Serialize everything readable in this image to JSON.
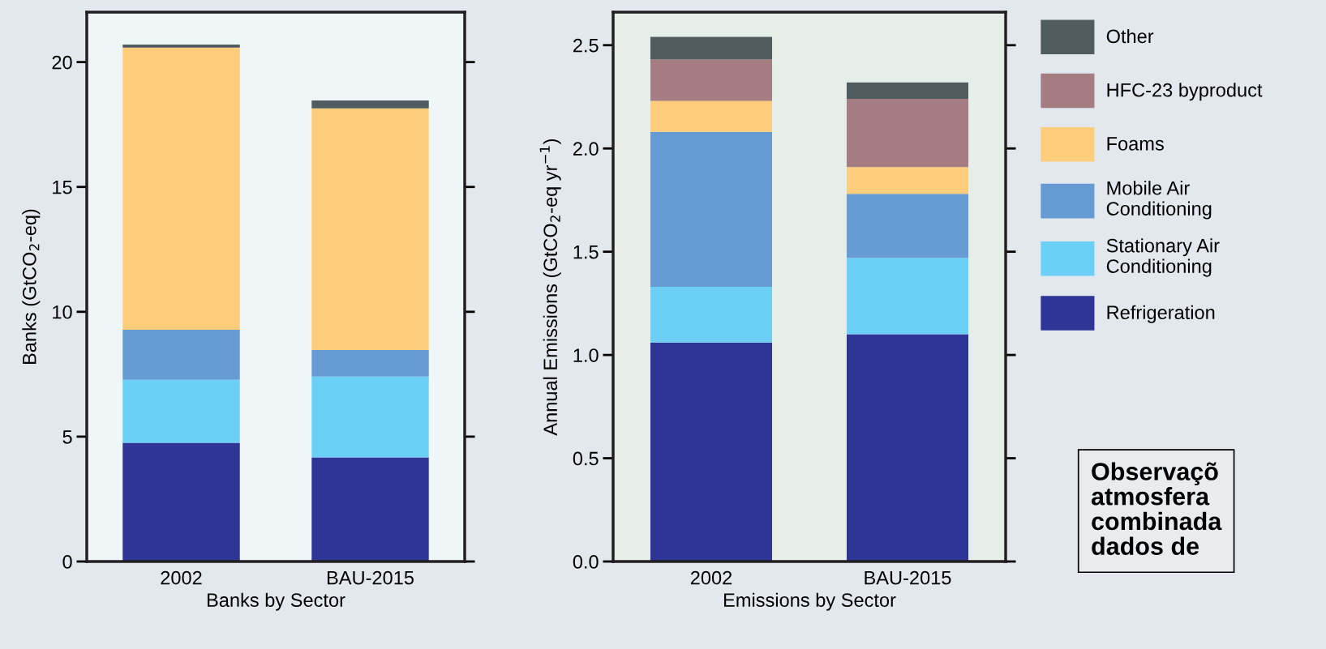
{
  "chart_data": [
    {
      "type": "bar",
      "stacked": true,
      "xlabel": "Banks by Sector",
      "ylabel": "Banks (GtCO$_{2}$-eq)",
      "categories": [
        "2002",
        "BAU-2015"
      ],
      "ylim": [
        0,
        22
      ],
      "yticks": [
        0,
        5,
        10,
        15,
        20
      ],
      "legend": false,
      "grid": false,
      "series": [
        {
          "color": "#2f3596",
          "values": [
            4.75,
            4.17
          ]
        },
        {
          "color": "#6ccff5",
          "values": [
            2.53,
            3.24
          ]
        },
        {
          "color": "#679bd3",
          "values": [
            2.0,
            1.06
          ]
        },
        {
          "color": "#fecd7b",
          "values": [
            11.3,
            9.68
          ]
        },
        {
          "color": "#515c61",
          "values": [
            0.12,
            0.31
          ]
        }
      ]
    },
    {
      "type": "bar",
      "stacked": true,
      "xlabel": "Emissions by Sector",
      "ylabel": "Annual Emissions (GtCO$_{2}$-eq yr$^{−1}$)",
      "categories": [
        "2002",
        "BAU-2015"
      ],
      "ylim": [
        0,
        2.66
      ],
      "yticks": [
        {
          "value": 0,
          "label": "0.0"
        },
        0.5,
        {
          "value": 1,
          "label": "1.0"
        },
        1.5,
        {
          "value": 2,
          "label": "2.0"
        },
        2.5
      ],
      "legend": "right",
      "grid": false,
      "annotations": [
        "Observaçõ\natmosfera\ncombinada\ndados de"
      ],
      "series": [
        {
          "name": "Refrigeration",
          "color": "#2f3596",
          "values": [
            1.06,
            1.1
          ]
        },
        {
          "name": "Stationary Air\nConditioning",
          "color": "#6ccff5",
          "values": [
            0.27,
            0.37
          ]
        },
        {
          "name": "Mobile Air\nConditioning",
          "color": "#679bd3",
          "values": [
            0.75,
            0.31
          ]
        },
        {
          "name": "Foams",
          "color": "#fecd7b",
          "values": [
            0.15,
            0.13
          ]
        },
        {
          "name": "HFC-23 byproduct",
          "color": "#a57c82",
          "values": [
            0.2,
            0.33
          ]
        },
        {
          "name": "Other",
          "color": "#515c61",
          "values": [
            0.11,
            0.08
          ]
        }
      ]
    }
  ]
}
